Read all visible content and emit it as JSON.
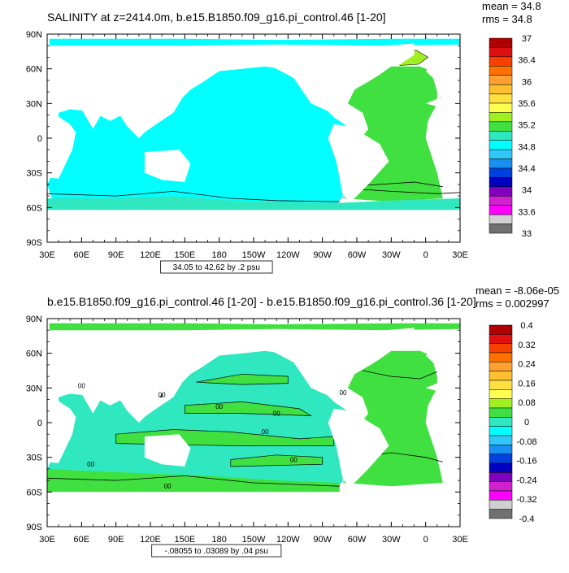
{
  "colors": {
    "land": "#ffffff",
    "frame": "#000000",
    "contour": "#000000"
  },
  "chart_data": [
    {
      "type": "map-contour",
      "title": "SALINITY at z=2414.0m, b.e15.B1850.f09_g16.pi_control.46 [1-20]",
      "stats": {
        "mean": "mean = 34.8",
        "rms": "rms = 34.8"
      },
      "range_label": "34.05 to 42.62 by .2 psu",
      "x_ticks": [
        "30E",
        "60E",
        "90E",
        "120E",
        "150E",
        "180",
        "150W",
        "120W",
        "90W",
        "60W",
        "30W",
        "0",
        "30E"
      ],
      "y_ticks": [
        "90N",
        "60N",
        "30N",
        "0",
        "30S",
        "60S",
        "90S"
      ],
      "colorbar": {
        "labels": [
          "37",
          "36.4",
          "36",
          "35.6",
          "35.2",
          "34.8",
          "34.4",
          "34",
          "33.6",
          "33"
        ],
        "colors": [
          "#b00000",
          "#e01010",
          "#f84000",
          "#ff7000",
          "#ffa030",
          "#ffc030",
          "#ffe040",
          "#ffff50",
          "#a0f020",
          "#40e040",
          "#30e8c0",
          "#00ffff",
          "#30c8f8",
          "#1890f0",
          "#0040e0",
          "#0000c0",
          "#8000c0",
          "#d020d0",
          "#ff00ff",
          "#d0d0d0",
          "#707070"
        ]
      },
      "fields": {
        "pacific_indian": "#00ffff",
        "atlantic": "#40e040",
        "southern": "#30e8c0",
        "nordic": "#a0f020",
        "med_outflow": "#b00000",
        "arctic_surface": "#00ffff",
        "deep_blue_patch": "#1890f0"
      }
    },
    {
      "type": "map-contour",
      "title": "b.e15.B1850.f09_g16.pi_control.46 [1-20] - b.e15.B1850.f09_g16.pi_control.36 [1-20]",
      "stats": {
        "mean": "mean = -8.06e-05",
        "rms": "rms = 0.002997"
      },
      "range_label": "-.08055 to .03089 by .04 psu",
      "contour_label": "00",
      "x_ticks": [
        "30E",
        "60E",
        "90E",
        "120E",
        "150E",
        "180",
        "150W",
        "120W",
        "90W",
        "60W",
        "30W",
        "0",
        "30E"
      ],
      "y_ticks": [
        "90N",
        "60N",
        "30N",
        "0",
        "30S",
        "60S",
        "90S"
      ],
      "colorbar": {
        "labels": [
          "0.4",
          "0.32",
          "0.24",
          "0.16",
          "0.08",
          "0",
          "-0.08",
          "-0.16",
          "-0.24",
          "-0.32",
          "-0.4"
        ],
        "colors": [
          "#b00000",
          "#e01010",
          "#f84000",
          "#ff7000",
          "#ffa030",
          "#ffc030",
          "#ffe040",
          "#ffff50",
          "#a0f020",
          "#40e040",
          "#30e8c0",
          "#00ffff",
          "#30c8f8",
          "#1890f0",
          "#0040e0",
          "#0000c0",
          "#8000c0",
          "#d020d0",
          "#ff00ff",
          "#d0d0d0",
          "#707070"
        ]
      },
      "fields": {
        "negative": "#30e8c0",
        "positive": "#40e040"
      }
    }
  ]
}
